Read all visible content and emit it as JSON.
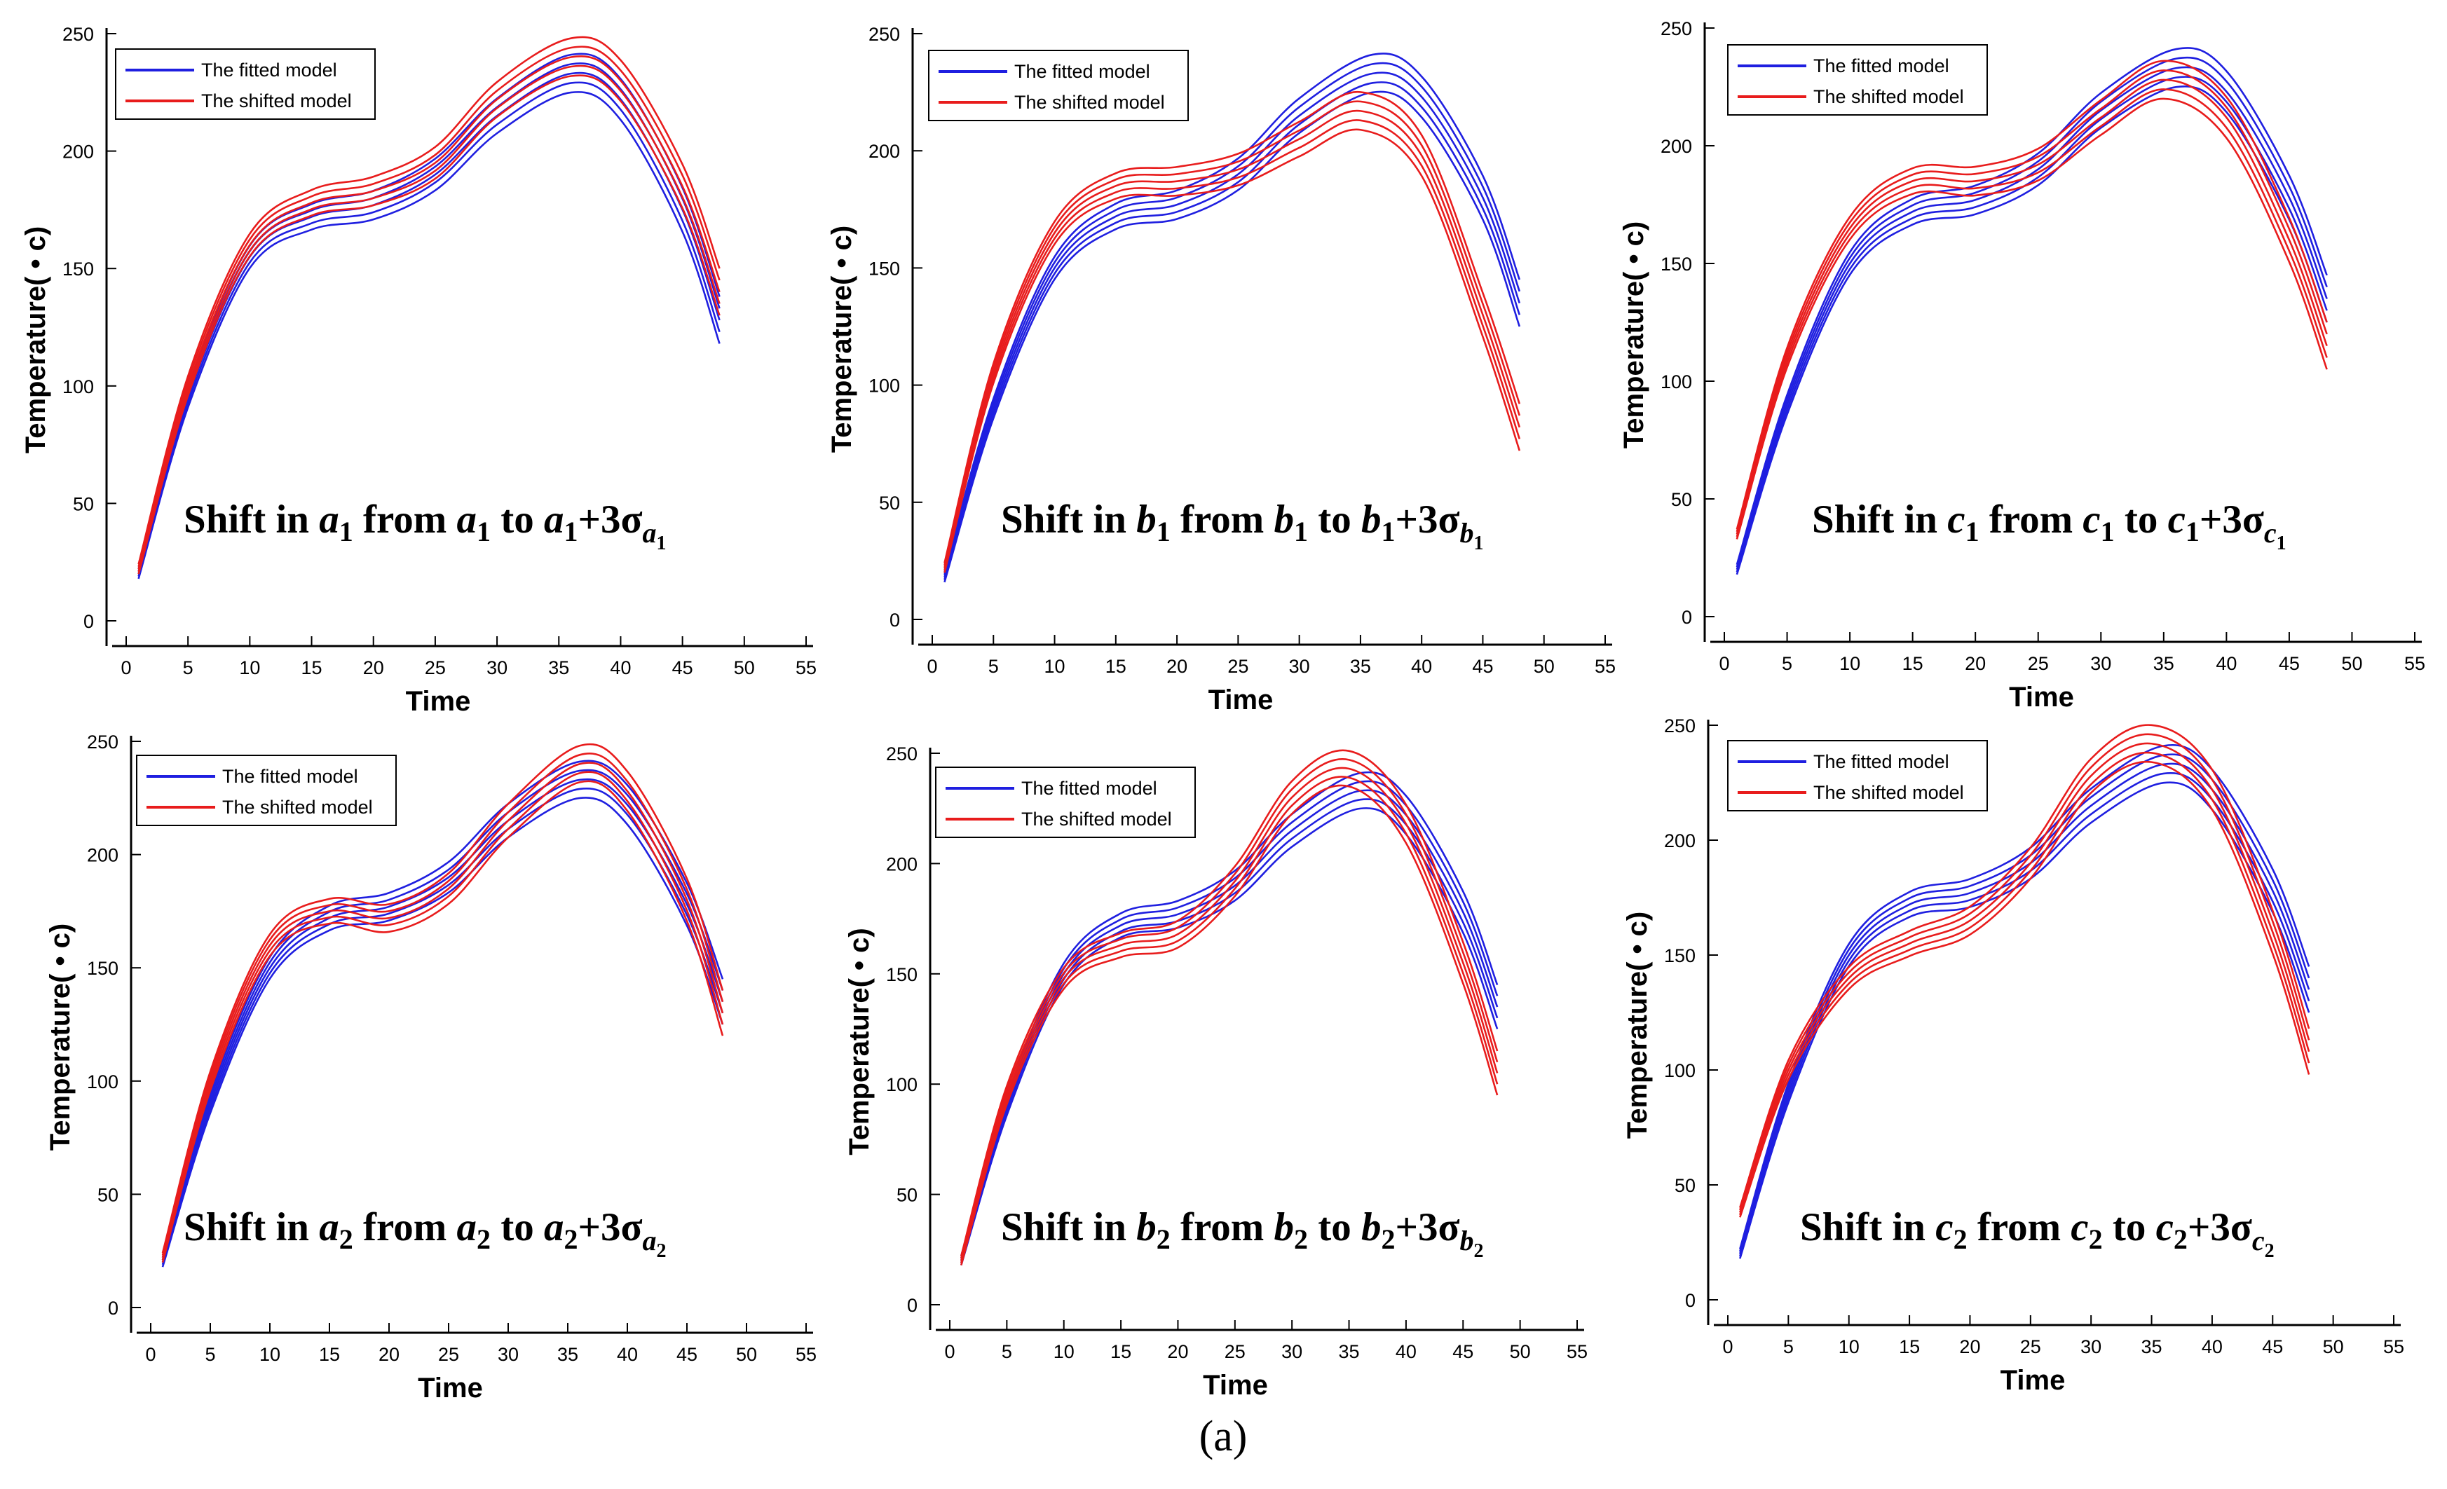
{
  "figure_label": "(a)",
  "colors": {
    "fitted": "#1f1fe0",
    "shifted": "#e81c1c",
    "axis": "#000000"
  },
  "chart_data": [
    {
      "type": "line",
      "param": "a",
      "index": "1",
      "xlabel": "Time",
      "ylabel": "Temperature( • c)",
      "xlim": [
        0,
        55
      ],
      "ylim": [
        0,
        250
      ],
      "xticks": [
        0,
        5,
        10,
        15,
        20,
        25,
        30,
        35,
        40,
        45,
        50,
        55
      ],
      "yticks": [
        0,
        50,
        100,
        150,
        200,
        250
      ],
      "legend": [
        "The fitted model",
        "The shifted model"
      ],
      "annotation": {
        "pre": "Shift in ",
        "var": "a",
        "sub": "1",
        "mid1": " from ",
        "mid2": " to ",
        "tail": "+3σ"
      },
      "series": [
        {
          "name": "The fitted model",
          "x": [
            1,
            5,
            10,
            15,
            20,
            25,
            30,
            36,
            40,
            45,
            48
          ],
          "y": [
            20,
            95,
            155,
            172,
            177,
            190,
            215,
            233,
            222,
            175,
            128
          ]
        },
        {
          "name": "The shifted model",
          "x": [
            1,
            5,
            10,
            15,
            20,
            25,
            30,
            36,
            40,
            45,
            48
          ],
          "y": [
            22,
            100,
            160,
            178,
            183,
            195,
            222,
            240,
            230,
            185,
            140
          ]
        }
      ]
    },
    {
      "type": "line",
      "param": "b",
      "index": "1",
      "xlabel": "Time",
      "ylabel": "Temperature( • c)",
      "xlim": [
        0,
        55
      ],
      "ylim": [
        0,
        250
      ],
      "xticks": [
        0,
        5,
        10,
        15,
        20,
        25,
        30,
        35,
        40,
        45,
        50,
        55
      ],
      "yticks": [
        0,
        50,
        100,
        150,
        200,
        250
      ],
      "legend": [
        "The fitted model",
        "The shifted model"
      ],
      "annotation": {
        "pre": "Shift in ",
        "var": "b",
        "sub": "1",
        "mid1": " from ",
        "mid2": " to ",
        "tail": "+3σ"
      },
      "series": [
        {
          "name": "The fitted model",
          "x": [
            1,
            5,
            10,
            15,
            20,
            25,
            30,
            36,
            40,
            45,
            48
          ],
          "y": [
            18,
            90,
            150,
            172,
            177,
            190,
            215,
            233,
            223,
            180,
            135
          ]
        },
        {
          "name": "The shifted model",
          "x": [
            1,
            5,
            10,
            15,
            20,
            25,
            30,
            35,
            40,
            45,
            48
          ],
          "y": [
            22,
            105,
            165,
            185,
            187,
            192,
            205,
            217,
            198,
            130,
            82
          ]
        }
      ]
    },
    {
      "type": "line",
      "param": "c",
      "index": "1",
      "xlabel": "Time",
      "ylabel": "Temperature( • c)",
      "xlim": [
        0,
        55
      ],
      "ylim": [
        0,
        250
      ],
      "xticks": [
        0,
        5,
        10,
        15,
        20,
        25,
        30,
        35,
        40,
        45,
        50,
        55
      ],
      "yticks": [
        0,
        50,
        100,
        150,
        200,
        250
      ],
      "legend": [
        "The fitted model",
        "The shifted model"
      ],
      "annotation": {
        "pre": "Shift in ",
        "var": "c",
        "sub": "1",
        "mid1": " from ",
        "mid2": " to ",
        "tail": "+3σ"
      },
      "series": [
        {
          "name": "The fitted model",
          "x": [
            1,
            5,
            10,
            15,
            20,
            25,
            30,
            36,
            40,
            45,
            48
          ],
          "y": [
            20,
            90,
            150,
            172,
            177,
            190,
            215,
            233,
            223,
            178,
            135
          ]
        },
        {
          "name": "The shifted model",
          "x": [
            1,
            5,
            10,
            15,
            20,
            25,
            30,
            35,
            40,
            45,
            48
          ],
          "y": [
            35,
            110,
            165,
            185,
            185,
            192,
            212,
            228,
            212,
            160,
            115
          ]
        }
      ]
    },
    {
      "type": "line",
      "param": "a",
      "index": "2",
      "xlabel": "Time",
      "ylabel": "Temperature( • c)",
      "xlim": [
        0,
        55
      ],
      "ylim": [
        0,
        250
      ],
      "xticks": [
        0,
        5,
        10,
        15,
        20,
        25,
        30,
        35,
        40,
        45,
        50,
        55
      ],
      "yticks": [
        0,
        50,
        100,
        150,
        200,
        250
      ],
      "legend": [
        "The fitted model",
        "The shifted model"
      ],
      "annotation": {
        "pre": "Shift in ",
        "var": "a",
        "sub": "2",
        "mid1": " from ",
        "mid2": " to ",
        "tail": "+3σ"
      },
      "series": [
        {
          "name": "The fitted model",
          "x": [
            1,
            5,
            10,
            15,
            20,
            25,
            30,
            36,
            40,
            45,
            48
          ],
          "y": [
            20,
            90,
            150,
            172,
            177,
            190,
            215,
            233,
            222,
            178,
            135
          ]
        },
        {
          "name": "The shifted model",
          "x": [
            1,
            5,
            10,
            15,
            20,
            25,
            30,
            36,
            40,
            45,
            48
          ],
          "y": [
            22,
            100,
            160,
            175,
            172,
            185,
            215,
            240,
            228,
            180,
            130
          ]
        }
      ]
    },
    {
      "type": "line",
      "param": "b",
      "index": "2",
      "xlabel": "Time",
      "ylabel": "Temperature( • c)",
      "xlim": [
        0,
        55
      ],
      "ylim": [
        0,
        250
      ],
      "xticks": [
        0,
        5,
        10,
        15,
        20,
        25,
        30,
        35,
        40,
        45,
        50,
        55
      ],
      "yticks": [
        0,
        50,
        100,
        150,
        200,
        250
      ],
      "legend": [
        "The fitted model",
        "The shifted model"
      ],
      "annotation": {
        "pre": "Shift in ",
        "var": "b",
        "sub": "2",
        "mid1": " from ",
        "mid2": " to ",
        "tail": "+3σ"
      },
      "series": [
        {
          "name": "The fitted model",
          "x": [
            1,
            5,
            10,
            15,
            20,
            25,
            30,
            36,
            40,
            45,
            48
          ],
          "y": [
            20,
            90,
            150,
            172,
            177,
            190,
            215,
            233,
            222,
            178,
            135
          ]
        },
        {
          "name": "The shifted model",
          "x": [
            1,
            5,
            10,
            15,
            20,
            25,
            30,
            35,
            40,
            45,
            48
          ],
          "y": [
            20,
            95,
            148,
            163,
            168,
            192,
            230,
            243,
            218,
            155,
            105
          ]
        }
      ]
    },
    {
      "type": "line",
      "param": "c",
      "index": "2",
      "xlabel": "Time",
      "ylabel": "Temperature( • c)",
      "xlim": [
        0,
        55
      ],
      "ylim": [
        0,
        250
      ],
      "xticks": [
        0,
        5,
        10,
        15,
        20,
        25,
        30,
        35,
        40,
        45,
        50,
        55
      ],
      "yticks": [
        0,
        50,
        100,
        150,
        200,
        250
      ],
      "legend": [
        "The fitted model",
        "The shifted model"
      ],
      "annotation": {
        "pre": "Shift in ",
        "var": "c",
        "sub": "2",
        "mid1": " from ",
        "mid2": " to ",
        "tail": "+3σ"
      },
      "series": [
        {
          "name": "The fitted model",
          "x": [
            1,
            5,
            10,
            15,
            20,
            25,
            30,
            36,
            40,
            45,
            48
          ],
          "y": [
            20,
            90,
            150,
            172,
            177,
            190,
            215,
            233,
            222,
            178,
            135
          ]
        },
        {
          "name": "The shifted model",
          "x": [
            1,
            5,
            10,
            15,
            20,
            25,
            30,
            35,
            40,
            45,
            48
          ],
          "y": [
            38,
            100,
            140,
            155,
            165,
            190,
            228,
            242,
            222,
            160,
            108
          ]
        }
      ]
    }
  ]
}
